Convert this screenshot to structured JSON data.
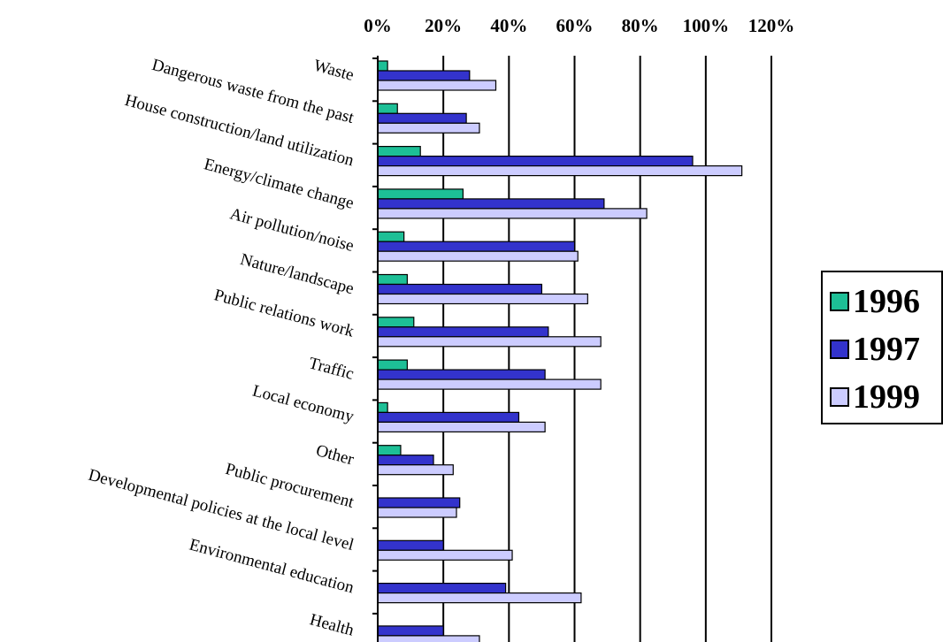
{
  "chart_data": {
    "type": "bar",
    "orientation": "horizontal",
    "xaxis_position": "top",
    "xlim": [
      0,
      120
    ],
    "x_ticks": [
      "0%",
      "20%",
      "40%",
      "60%",
      "80%",
      "100%",
      "120%"
    ],
    "grid": "vertical",
    "legend_position": "right",
    "categories": [
      "Waste",
      "Dangerous waste from the past",
      "House construction/land utilization",
      "Energy/climate change",
      "Air pollution/noise",
      "Nature/landscape",
      "Public relations work",
      "Traffic",
      "Local economy",
      "Other",
      "Public procurement",
      "Developmental policies at the local level",
      "Environmental education",
      "Health"
    ],
    "series": [
      {
        "name": "1996",
        "color": "#1dbf96",
        "values": [
          3,
          6,
          13,
          26,
          8,
          9,
          11,
          9,
          3,
          7,
          0,
          0,
          0,
          0
        ]
      },
      {
        "name": "1997",
        "color": "#3333cc",
        "values": [
          28,
          27,
          96,
          69,
          60,
          50,
          52,
          51,
          43,
          17,
          25,
          20,
          39,
          20
        ]
      },
      {
        "name": "1999",
        "color": "#ccccff",
        "values": [
          36,
          31,
          111,
          82,
          61,
          64,
          68,
          68,
          51,
          23,
          24,
          41,
          62,
          31
        ]
      }
    ]
  }
}
